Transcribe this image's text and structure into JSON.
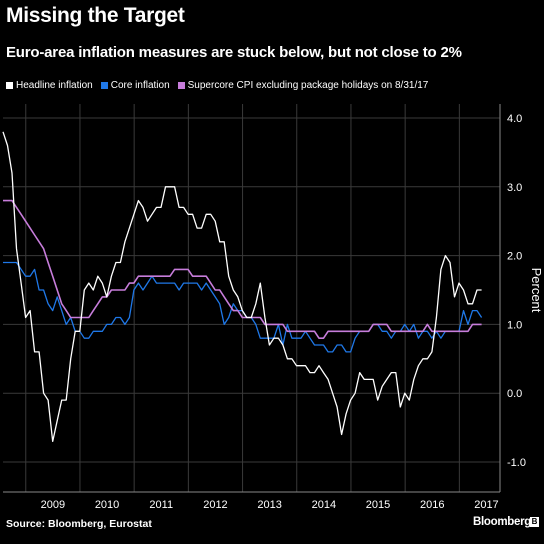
{
  "colors": {
    "background": "#000000",
    "headline": "#ffffff",
    "core": "#1f78e8",
    "supercore": "#c77ddb",
    "grid": "#3a3a3a"
  },
  "footer": {
    "source": "Source: Bloomberg, Eurostat",
    "brand": "Bloomberg"
  },
  "chart_data": {
    "type": "line",
    "title": "Missing the Target",
    "subtitle": "Euro-area inflation measures are stuck below, but not close to 2%",
    "ylabel": "Percent",
    "ylim": [
      -1.0,
      4.0
    ],
    "yticks": [
      "4.0",
      "3.0",
      "2.0",
      "1.0",
      "0.0",
      "-1.0"
    ],
    "xlim": [
      2008.58,
      2017.75
    ],
    "x_labels": [
      "2009",
      "2010",
      "2011",
      "2012",
      "2013",
      "2014",
      "2015",
      "2016",
      "2017"
    ],
    "grid": true,
    "legend_position": "top-left",
    "series": [
      {
        "name": "Headline inflation",
        "color": "#ffffff",
        "x_start": 2008.58,
        "step": 0.0833,
        "values": [
          3.8,
          3.6,
          3.2,
          2.1,
          1.6,
          1.1,
          1.2,
          0.6,
          0.6,
          0.0,
          -0.1,
          -0.7,
          -0.4,
          -0.1,
          -0.1,
          0.5,
          0.9,
          0.9,
          1.5,
          1.6,
          1.5,
          1.7,
          1.6,
          1.4,
          1.7,
          1.9,
          1.9,
          2.2,
          2.4,
          2.6,
          2.8,
          2.7,
          2.5,
          2.6,
          2.7,
          2.7,
          3.0,
          3.0,
          3.0,
          2.7,
          2.7,
          2.6,
          2.6,
          2.4,
          2.4,
          2.6,
          2.6,
          2.5,
          2.2,
          2.2,
          1.7,
          1.5,
          1.4,
          1.2,
          1.1,
          1.1,
          1.3,
          1.6,
          1.1,
          0.7,
          0.8,
          0.8,
          0.7,
          0.5,
          0.5,
          0.4,
          0.4,
          0.4,
          0.3,
          0.3,
          0.4,
          0.3,
          0.2,
          0.0,
          -0.2,
          -0.6,
          -0.3,
          -0.1,
          0.0,
          0.3,
          0.2,
          0.2,
          0.2,
          -0.1,
          0.1,
          0.2,
          0.3,
          0.3,
          -0.2,
          0.0,
          -0.1,
          0.2,
          0.4,
          0.5,
          0.5,
          0.6,
          1.1,
          1.8,
          2.0,
          1.9,
          1.4,
          1.6,
          1.5,
          1.3,
          1.3,
          1.5,
          1.5
        ]
      },
      {
        "name": "Core inflation",
        "color": "#1f78e8",
        "x_start": 2008.58,
        "step": 0.0833,
        "values": [
          1.9,
          1.9,
          1.9,
          1.9,
          1.8,
          1.7,
          1.7,
          1.8,
          1.5,
          1.5,
          1.3,
          1.2,
          1.4,
          1.2,
          1.0,
          1.1,
          0.9,
          0.9,
          0.8,
          0.8,
          0.9,
          0.9,
          0.9,
          1.0,
          1.0,
          1.1,
          1.1,
          1.0,
          1.1,
          1.5,
          1.6,
          1.5,
          1.6,
          1.7,
          1.6,
          1.6,
          1.6,
          1.6,
          1.6,
          1.5,
          1.6,
          1.6,
          1.6,
          1.6,
          1.5,
          1.6,
          1.5,
          1.4,
          1.3,
          1.0,
          1.1,
          1.3,
          1.2,
          1.2,
          1.1,
          1.1,
          1.0,
          0.8,
          0.8,
          0.8,
          0.8,
          1.0,
          0.7,
          1.0,
          0.8,
          0.8,
          0.8,
          0.9,
          0.8,
          0.7,
          0.7,
          0.7,
          0.6,
          0.6,
          0.7,
          0.7,
          0.6,
          0.6,
          0.8,
          0.9,
          0.9,
          0.9,
          1.0,
          1.0,
          0.9,
          0.9,
          0.8,
          0.9,
          0.9,
          1.0,
          0.9,
          1.0,
          0.8,
          0.9,
          0.9,
          0.8,
          0.9,
          0.8,
          0.9,
          0.9,
          0.9,
          0.9,
          1.2,
          1.0,
          1.2,
          1.2,
          1.1
        ]
      },
      {
        "name": "Supercore CPI excluding package holidays on 8/31/17",
        "color": "#c77ddb",
        "x_start": 2008.58,
        "step": 0.0833,
        "values": [
          2.8,
          2.8,
          2.8,
          2.7,
          2.6,
          2.5,
          2.4,
          2.3,
          2.2,
          2.1,
          1.9,
          1.7,
          1.5,
          1.3,
          1.2,
          1.1,
          1.1,
          1.1,
          1.1,
          1.1,
          1.2,
          1.3,
          1.4,
          1.4,
          1.5,
          1.5,
          1.5,
          1.5,
          1.6,
          1.6,
          1.7,
          1.7,
          1.7,
          1.7,
          1.7,
          1.7,
          1.7,
          1.7,
          1.8,
          1.8,
          1.8,
          1.8,
          1.7,
          1.7,
          1.7,
          1.7,
          1.6,
          1.5,
          1.5,
          1.4,
          1.3,
          1.2,
          1.2,
          1.1,
          1.1,
          1.1,
          1.1,
          1.1,
          1.0,
          1.0,
          1.0,
          1.0,
          1.0,
          0.9,
          0.9,
          0.9,
          0.9,
          0.9,
          0.9,
          0.9,
          0.8,
          0.8,
          0.9,
          0.9,
          0.9,
          0.9,
          0.9,
          0.9,
          0.9,
          0.9,
          0.9,
          0.9,
          1.0,
          1.0,
          1.0,
          1.0,
          0.9,
          0.9,
          0.9,
          0.9,
          0.9,
          0.9,
          0.9,
          0.9,
          1.0,
          0.9,
          0.9,
          0.9,
          0.9,
          0.9,
          0.9,
          0.9,
          0.9,
          0.9,
          1.0,
          1.0,
          1.0
        ]
      }
    ]
  }
}
